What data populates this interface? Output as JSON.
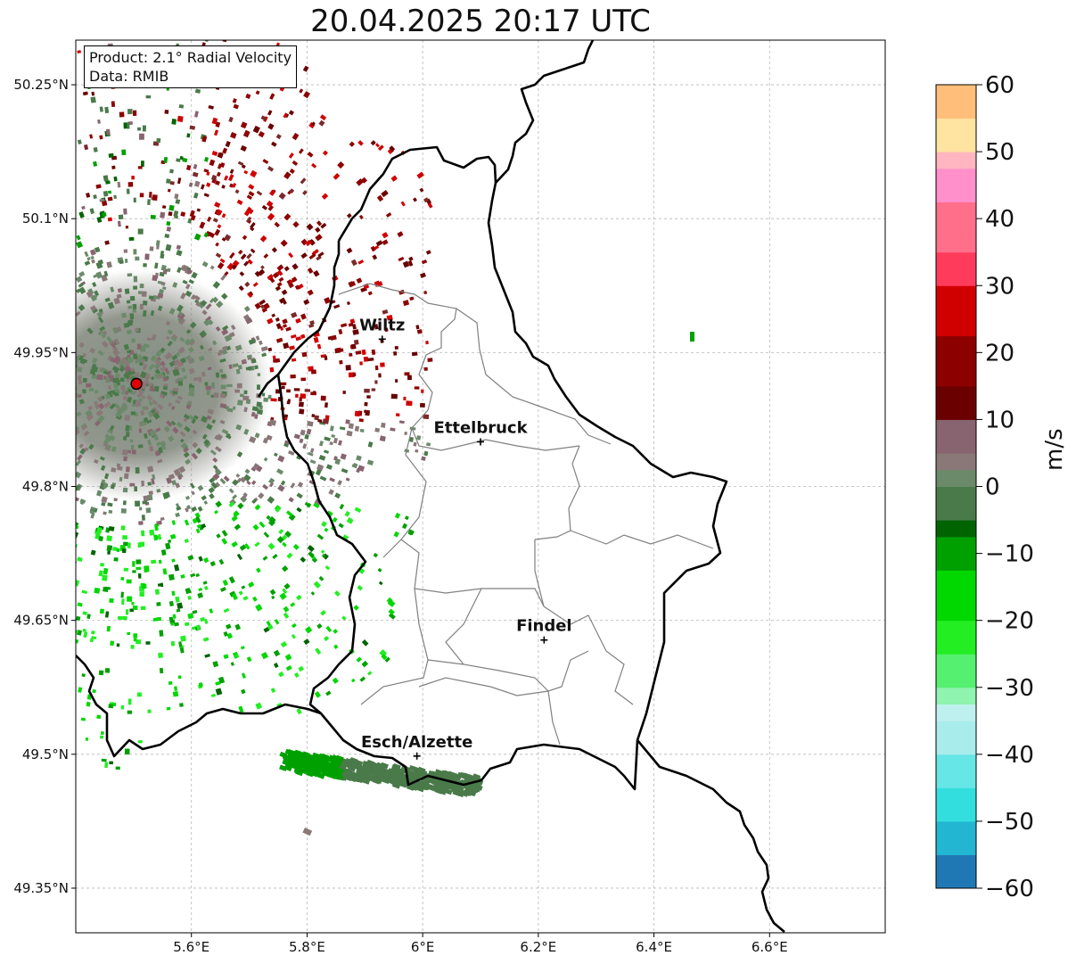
{
  "title": "20.04.2025 20:17 UTC",
  "info": {
    "product": "Product: 2.1° Radial Velocity",
    "data": "Data: RMIB"
  },
  "map": {
    "extent": {
      "lon": [
        5.4,
        6.8
      ],
      "lat": [
        49.3,
        50.3
      ]
    },
    "lon_ticks": [
      {
        "value": 5.6,
        "label": "5.6°E"
      },
      {
        "value": 5.8,
        "label": "5.8°E"
      },
      {
        "value": 6.0,
        "label": "6°E"
      },
      {
        "value": 6.2,
        "label": "6.2°E"
      },
      {
        "value": 6.4,
        "label": "6.4°E"
      },
      {
        "value": 6.6,
        "label": "6.6°E"
      }
    ],
    "lat_ticks": [
      {
        "value": 50.25,
        "label": "50.25°N"
      },
      {
        "value": 50.1,
        "label": "50.1°N"
      },
      {
        "value": 49.95,
        "label": "49.95°N"
      },
      {
        "value": 49.8,
        "label": "49.8°N"
      },
      {
        "value": 49.65,
        "label": "49.65°N"
      },
      {
        "value": 49.5,
        "label": "49.5°N"
      },
      {
        "value": 49.35,
        "label": "49.35°N"
      }
    ],
    "gridlines": true,
    "radar_site": {
      "lon": 5.505,
      "lat": 49.915
    },
    "cities": [
      {
        "name": "Wiltz",
        "lon": 5.93,
        "lat": 49.965
      },
      {
        "name": "Ettelbruck",
        "lon": 6.1,
        "lat": 49.85
      },
      {
        "name": "Findel",
        "lon": 6.21,
        "lat": 49.628
      },
      {
        "name": "Esch/Alzette",
        "lon": 5.99,
        "lat": 49.498
      }
    ],
    "colors": {
      "border": "#000000",
      "cantons": "#808080",
      "grid": "#b8b8b8",
      "radar_site": "#e00000"
    }
  },
  "colorbar": {
    "unit": "m/s",
    "vmin": -60,
    "vmax": 60,
    "ticks": [
      {
        "value": 60,
        "label": "60"
      },
      {
        "value": 50,
        "label": "50"
      },
      {
        "value": 40,
        "label": "40"
      },
      {
        "value": 30,
        "label": "30"
      },
      {
        "value": 20,
        "label": "20"
      },
      {
        "value": 10,
        "label": "10"
      },
      {
        "value": 0,
        "label": "0"
      },
      {
        "value": -10,
        "label": "−10"
      },
      {
        "value": -20,
        "label": "−20"
      },
      {
        "value": -30,
        "label": "−30"
      },
      {
        "value": -40,
        "label": "−40"
      },
      {
        "value": -50,
        "label": "−50"
      },
      {
        "value": -60,
        "label": "−60"
      }
    ],
    "stops": [
      {
        "value": -60,
        "color": "#1f78b4"
      },
      {
        "value": -55,
        "color": "#22b6d2"
      },
      {
        "value": -50,
        "color": "#33dede"
      },
      {
        "value": -45,
        "color": "#66e6e6"
      },
      {
        "value": -40,
        "color": "#a8ecec"
      },
      {
        "value": -37,
        "color": "#bff0f0"
      },
      {
        "value": -33,
        "color": "#8ef4b0"
      },
      {
        "value": -30,
        "color": "#55f070"
      },
      {
        "value": -27,
        "color": "#22ee22"
      },
      {
        "value": -20,
        "color": "#00d800"
      },
      {
        "value": -13,
        "color": "#00a000"
      },
      {
        "value": -8,
        "color": "#006400"
      },
      {
        "value": -6,
        "color": "#4a7a4a"
      },
      {
        "value": -2,
        "color": "#6a8a6a"
      },
      {
        "value": 1,
        "color": "#8a7878"
      },
      {
        "value": 4,
        "color": "#886470"
      },
      {
        "value": 8,
        "color": "#7a2a2a"
      },
      {
        "value": 10,
        "color": "#6a0000"
      },
      {
        "value": 15,
        "color": "#8c0000"
      },
      {
        "value": 22,
        "color": "#d00000"
      },
      {
        "value": 28,
        "color": "#ff0000"
      },
      {
        "value": 30,
        "color": "#ff3b5b"
      },
      {
        "value": 35,
        "color": "#ff6f8a"
      },
      {
        "value": 42,
        "color": "#ff90cc"
      },
      {
        "value": 46,
        "color": "#ffb6c0"
      },
      {
        "value": 50,
        "color": "#ffe3a0"
      },
      {
        "value": 55,
        "color": "#ffbe7a"
      },
      {
        "value": 60,
        "color": "#ff9a55"
      }
    ]
  }
}
